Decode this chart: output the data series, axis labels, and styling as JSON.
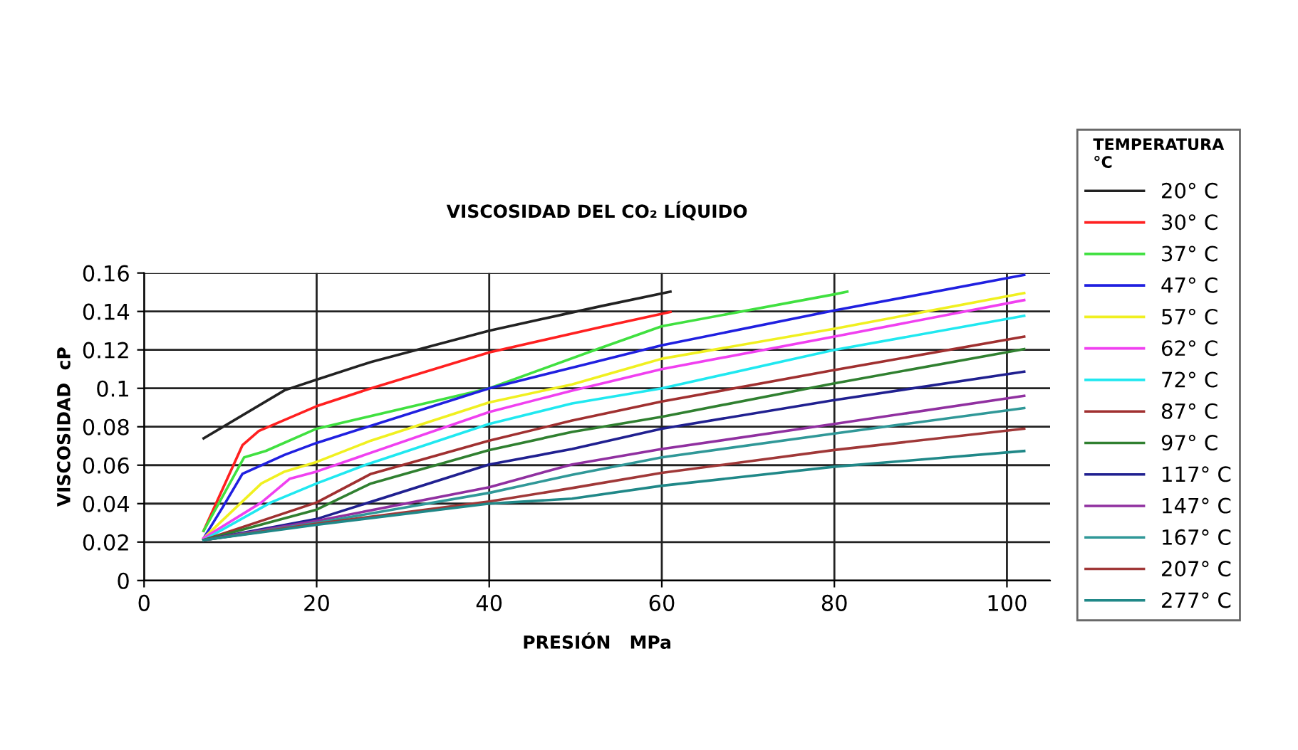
{
  "chart_data": {
    "type": "line",
    "title": "VISCOSIDAD DEL CO₂ LÍQUIDO",
    "xlabel": "PRESIÓN   MPa",
    "ylabel": "VISCOSIDAD  cP",
    "legend_title": "TEMPERATURA\n°C",
    "legend": "right",
    "grid": true,
    "marker": "none",
    "line_style": "solid",
    "xlim": [
      0,
      105
    ],
    "xticks": [
      0,
      20,
      40,
      60,
      80,
      100
    ],
    "ylim": [
      0,
      0.16
    ],
    "yticks": [
      0,
      0.02,
      0.04,
      0.06,
      0.08,
      0.1,
      0.12,
      0.14,
      0.16
    ],
    "series": [
      {
        "name": "20° C",
        "color": "#222222",
        "x": [
          6.9,
          16.3,
          20,
          26.3,
          40,
          52.9,
          61
        ],
        "values": [
          0.074,
          0.099,
          0.1045,
          0.1137,
          0.13,
          0.1427,
          0.1503
        ]
      },
      {
        "name": "30° C",
        "color": "#ff2020",
        "x": [
          6.9,
          11.4,
          13.3,
          20,
          26.3,
          40,
          52.9,
          61
        ],
        "values": [
          0.0258,
          0.0704,
          0.0778,
          0.0907,
          0.1,
          0.1187,
          0.1318,
          0.1397
        ]
      },
      {
        "name": "37° C",
        "color": "#40e040",
        "x": [
          6.9,
          11.6,
          14.1,
          20,
          40,
          52.9,
          60,
          80,
          81.5
        ],
        "values": [
          0.0258,
          0.0641,
          0.0674,
          0.079,
          0.1,
          0.121,
          0.1323,
          0.1489,
          0.1503
        ]
      },
      {
        "name": "47° C",
        "color": "#2020e0",
        "x": [
          6.9,
          9.1,
          11.4,
          16.3,
          20,
          40,
          52.9,
          60,
          80,
          102
        ],
        "values": [
          0.022,
          0.038,
          0.0555,
          0.0654,
          0.0716,
          0.1,
          0.1144,
          0.1224,
          0.1405,
          0.159
        ]
      },
      {
        "name": "57° C",
        "color": "#f0f020",
        "x": [
          6.9,
          13.6,
          16.3,
          20,
          26.3,
          40,
          49.6,
          60,
          80,
          102
        ],
        "values": [
          0.022,
          0.0505,
          0.0567,
          0.0617,
          0.0728,
          0.0927,
          0.102,
          0.1154,
          0.131,
          0.1496
        ]
      },
      {
        "name": "62° C",
        "color": "#f040f0",
        "x": [
          6.9,
          13.6,
          16.9,
          20,
          40,
          49.6,
          60,
          80,
          102
        ],
        "values": [
          0.022,
          0.0406,
          0.053,
          0.0567,
          0.0877,
          0.0988,
          0.11,
          0.1269,
          0.1459
        ]
      },
      {
        "name": "72° C",
        "color": "#20e8f0",
        "x": [
          6.9,
          14.7,
          20,
          25.8,
          40,
          49.6,
          60,
          80,
          102
        ],
        "values": [
          0.021,
          0.0406,
          0.0505,
          0.0604,
          0.0815,
          0.0921,
          0.1,
          0.12,
          0.1377
        ]
      },
      {
        "name": "87° C",
        "color": "#a03030",
        "x": [
          6.9,
          20,
          26.3,
          40,
          49.6,
          60,
          80,
          102
        ],
        "values": [
          0.021,
          0.0406,
          0.0555,
          0.0728,
          0.0832,
          0.0931,
          0.1095,
          0.1269
        ]
      },
      {
        "name": "97° C",
        "color": "#308030",
        "x": [
          6.9,
          20,
          26.3,
          40,
          49.6,
          60,
          80,
          102
        ],
        "values": [
          0.021,
          0.0369,
          0.0505,
          0.0679,
          0.0773,
          0.0852,
          0.1026,
          0.1204
        ]
      },
      {
        "name": "117° C",
        "color": "#202090",
        "x": [
          6.9,
          20,
          40,
          49.6,
          60,
          80,
          102
        ],
        "values": [
          0.021,
          0.032,
          0.0604,
          0.0684,
          0.079,
          0.0939,
          0.1087
        ]
      },
      {
        "name": "147° C",
        "color": "#9030a0",
        "x": [
          6.9,
          20,
          40,
          49.6,
          60,
          80,
          102
        ],
        "values": [
          0.021,
          0.031,
          0.0485,
          0.0604,
          0.0684,
          0.0815,
          0.0961
        ]
      },
      {
        "name": "167° C",
        "color": "#309898",
        "x": [
          6.9,
          20,
          40,
          49.6,
          60,
          80,
          102
        ],
        "values": [
          0.021,
          0.03,
          0.0456,
          0.055,
          0.0641,
          0.0765,
          0.0897
        ]
      },
      {
        "name": "207° C",
        "color": "#a03838",
        "x": [
          6.9,
          20,
          40,
          49.6,
          60,
          80,
          102
        ],
        "values": [
          0.021,
          0.0295,
          0.0411,
          0.0481,
          0.056,
          0.0679,
          0.079
        ]
      },
      {
        "name": "277° C",
        "color": "#208888",
        "x": [
          6.9,
          20,
          40,
          49.6,
          60,
          80,
          102
        ],
        "values": [
          0.021,
          0.029,
          0.04,
          0.0426,
          0.0493,
          0.0592,
          0.0674
        ]
      }
    ]
  }
}
